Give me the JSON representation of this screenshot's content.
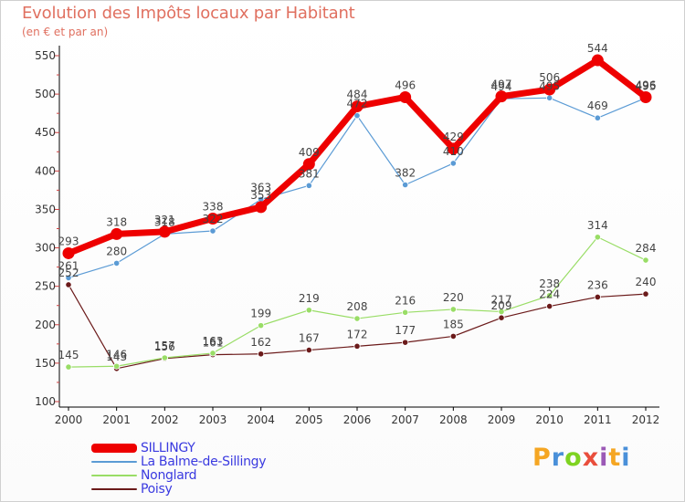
{
  "title": "Evolution des Impôts locaux par Habitant",
  "subtitle": "(en € et par an)",
  "brand": {
    "text": "Proxiti",
    "letters": [
      {
        "ch": "P",
        "color": "#f5a623"
      },
      {
        "ch": "r",
        "color": "#4a90d9"
      },
      {
        "ch": "o",
        "color": "#7ed321"
      },
      {
        "ch": "x",
        "color": "#e94e3c"
      },
      {
        "ch": "i",
        "color": "#9b59b6"
      },
      {
        "ch": "t",
        "color": "#f5a623"
      },
      {
        "ch": "i",
        "color": "#4a90d9"
      }
    ]
  },
  "chart_data": {
    "type": "line",
    "title": "Evolution des Impôts locaux par Habitant",
    "subtitle": "(en € et par an)",
    "xlabel": "",
    "ylabel": "",
    "ylim": [
      100,
      550
    ],
    "yticks": [
      100,
      150,
      200,
      250,
      300,
      350,
      400,
      450,
      500,
      550
    ],
    "grid": false,
    "legend_position": "bottom-left",
    "categories": [
      "2000",
      "2001",
      "2002",
      "2003",
      "2004",
      "2005",
      "2006",
      "2007",
      "2008",
      "2009",
      "2010",
      "2011",
      "2012"
    ],
    "series": [
      {
        "name": "SILLINGY",
        "color": "#ee0000",
        "values": [
          293,
          318,
          321,
          338,
          353,
          409,
          484,
          496,
          429,
          497,
          506,
          544,
          496
        ]
      },
      {
        "name": "La Balme-de-Sillingy",
        "color": "#5b9bd5",
        "values": [
          261,
          280,
          318,
          322,
          363,
          381,
          472,
          382,
          410,
          494,
          495,
          469,
          495
        ]
      },
      {
        "name": "Nonglard",
        "color": "#99dd66",
        "values": [
          145,
          146,
          157,
          163,
          199,
          219,
          208,
          216,
          220,
          217,
          238,
          314,
          284
        ]
      },
      {
        "name": "Poisy",
        "color": "#6b1a1a",
        "values": [
          252,
          143,
          156,
          161,
          162,
          167,
          172,
          177,
          185,
          209,
          224,
          236,
          240
        ]
      }
    ]
  }
}
